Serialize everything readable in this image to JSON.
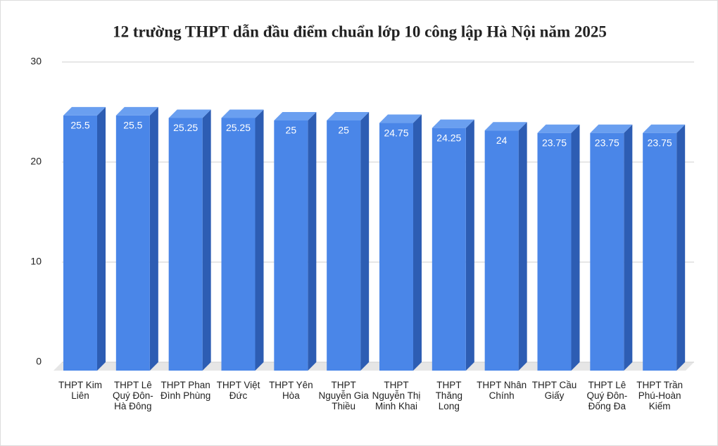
{
  "chart_data": {
    "type": "bar3d",
    "title": "12 trường THPT dẫn đầu điểm chuẩn lớp 10 công lập Hà Nội năm 2025",
    "categories": [
      "THPT Kim Liên",
      "THPT Lê Quý Đôn-Hà Đông",
      "THPT Phan Đình Phùng",
      "THPT Việt Đức",
      "THPT Yên Hòa",
      "THPT Nguyễn Gia Thiều",
      "THPT Nguyễn Thị Minh Khai",
      "THPT Thăng Long",
      "THPT Nhân Chính",
      "THPT Cầu Giấy",
      "THPT Lê Quý Đôn-Đống Đa",
      "THPT Trần Phú-Hoàn Kiếm"
    ],
    "values": [
      25.5,
      25.5,
      25.25,
      25.25,
      25,
      25,
      24.75,
      24.25,
      24,
      23.75,
      23.75,
      23.75
    ],
    "color": "#4a86e8",
    "ylim": [
      0,
      30
    ],
    "yticks": [
      0,
      10,
      20,
      30
    ],
    "grid": true
  }
}
